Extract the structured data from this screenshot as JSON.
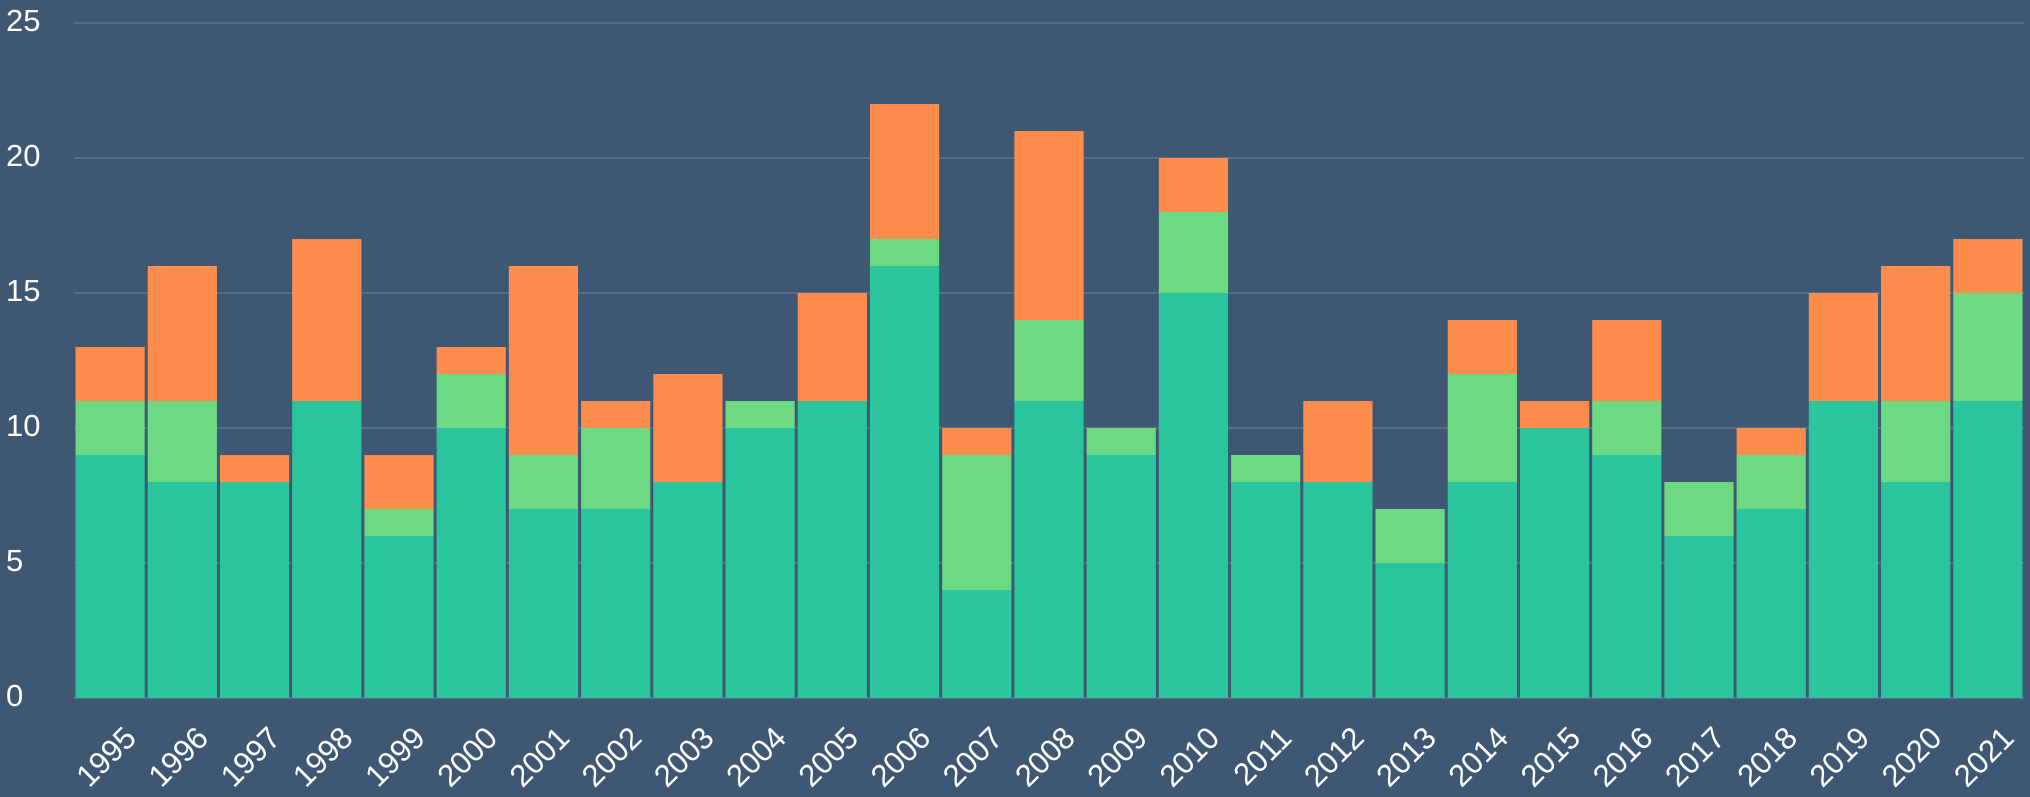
{
  "chart_data": {
    "type": "bar",
    "stacked": true,
    "categories": [
      "1995",
      "1996",
      "1997",
      "1998",
      "1999",
      "2000",
      "2001",
      "2002",
      "2003",
      "2004",
      "2005",
      "2006",
      "2007",
      "2008",
      "2009",
      "2010",
      "2011",
      "2012",
      "2013",
      "2014",
      "2015",
      "2016",
      "2017",
      "2018",
      "2019",
      "2020",
      "2021"
    ],
    "series": [
      {
        "color": "#2bc59d",
        "values": [
          9,
          8,
          8,
          11,
          6,
          10,
          7,
          7,
          8,
          10,
          11,
          16,
          4,
          11,
          9,
          15,
          8,
          8,
          5,
          8,
          10,
          9,
          6,
          7,
          11,
          8,
          11
        ]
      },
      {
        "color": "#6ed983",
        "values": [
          2,
          3,
          0,
          0,
          1,
          2,
          2,
          3,
          0,
          1,
          0,
          1,
          5,
          3,
          1,
          3,
          1,
          0,
          2,
          4,
          0,
          2,
          2,
          2,
          0,
          3,
          4
        ]
      },
      {
        "color": "#fd8c4d",
        "values": [
          2,
          5,
          1,
          6,
          2,
          1,
          7,
          1,
          4,
          0,
          4,
          5,
          1,
          7,
          0,
          2,
          0,
          3,
          0,
          2,
          1,
          3,
          0,
          1,
          4,
          5,
          2
        ]
      }
    ],
    "ylim": [
      0,
      25
    ],
    "yticks": [
      0,
      5,
      10,
      15,
      20,
      25
    ],
    "grid": true
  }
}
